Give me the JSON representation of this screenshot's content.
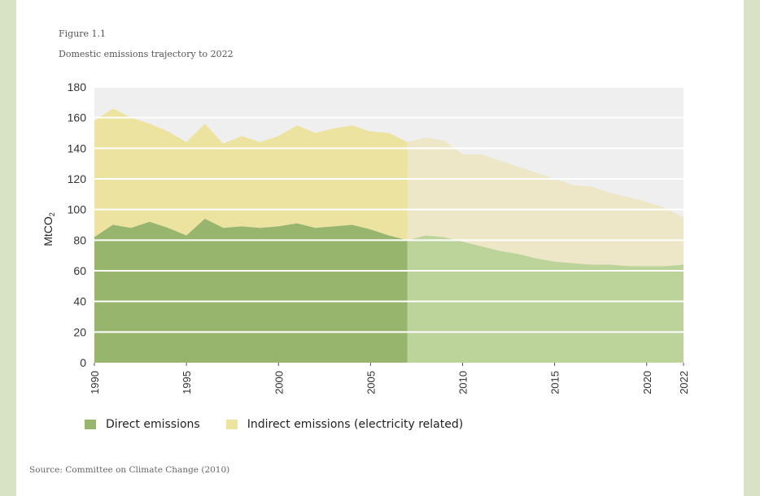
{
  "figure_label": "Figure 1.1",
  "figure_title": "Domestic emissions trajectory to 2022",
  "source": "Source: Committee on Climate Change (2010)",
  "colors": {
    "plot_bg": "#efefef",
    "direct": "#98b56e",
    "indirect": "#ede3a1",
    "direct_projected": "#bcd39a",
    "indirect_projected": "#ede6c7"
  },
  "chart_data": {
    "type": "area",
    "title": "",
    "xlabel": "",
    "ylabel": "MtCO",
    "ylabel_subscript": "2",
    "ylim": [
      0,
      180
    ],
    "yticks": [
      0,
      20,
      40,
      60,
      80,
      100,
      120,
      140,
      160,
      180
    ],
    "xlim": [
      1990,
      2022
    ],
    "xticks": [
      1990,
      1995,
      2000,
      2005,
      2010,
      2015,
      2020,
      2022
    ],
    "grid": true,
    "legend_position": "bottom",
    "projection_start": 2007,
    "x": [
      1990,
      1991,
      1992,
      1993,
      1994,
      1995,
      1996,
      1997,
      1998,
      1999,
      2000,
      2001,
      2002,
      2003,
      2004,
      2005,
      2006,
      2007,
      2008,
      2009,
      2010,
      2011,
      2012,
      2013,
      2014,
      2015,
      2016,
      2017,
      2018,
      2019,
      2020,
      2021,
      2022
    ],
    "series": [
      {
        "name": "Direct emissions",
        "values": [
          82,
          90,
          88,
          92,
          88,
          83,
          94,
          88,
          89,
          88,
          89,
          91,
          88,
          89,
          90,
          87,
          83,
          80,
          83,
          82,
          79,
          76,
          73,
          71,
          68,
          66,
          65,
          64,
          64,
          63,
          63,
          63,
          64
        ]
      },
      {
        "name": "Indirect emissions (electricity related)",
        "values": [
          76,
          76,
          72,
          64,
          63,
          61,
          62,
          55,
          59,
          56,
          59,
          64,
          62,
          64,
          65,
          64,
          67,
          64,
          64,
          63,
          57,
          60,
          59,
          57,
          56,
          54,
          51,
          51,
          47,
          45,
          42,
          38,
          31
        ]
      }
    ]
  }
}
